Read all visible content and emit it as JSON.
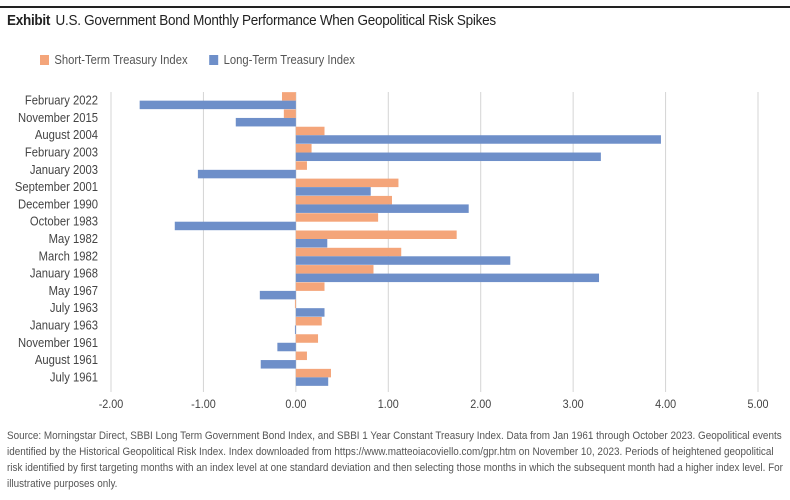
{
  "header": {
    "exhibit_label": "Exhibit",
    "title": "U.S. Government Bond Monthly Performance When Geopolitical Risk Spikes"
  },
  "footnote": "Source: Morningstar Direct, SBBI Long Term Government Bond Index, and SBBI 1 Year Constant Treasury Index. Data from Jan 1961 through October 2023. Geopolitical events identified by the Historical Geopolitical Risk Index. Index downloaded from https://www.matteoiacoviello.com/gpr.htm on November 10, 2023. Periods of heightened geopolitical risk identified by first targeting months with an index level at one standard deviation and then selecting those months in which the subsequent month had a higher index level. For illustrative purposes only.",
  "chart_data": {
    "type": "bar",
    "orientation": "horizontal",
    "title": "U.S. Government Bond Monthly Performance When Geopolitical Risk Spikes",
    "xlabel": "",
    "ylabel": "",
    "xlim": [
      -2,
      5
    ],
    "x_ticks": [
      -2,
      -1,
      0,
      1,
      2,
      3,
      4,
      5
    ],
    "x_tick_labels": [
      "-2.00",
      "-1.00",
      "0.00",
      "1.00",
      "2.00",
      "3.00",
      "4.00",
      "5.00"
    ],
    "grid": "vertical",
    "legend_position": "top-left",
    "categories": [
      "February 2022",
      "November 2015",
      "August 2004",
      "February 2003",
      "January 2003",
      "September 2001",
      "December 1990",
      "October 1983",
      "May 1982",
      "March 1982",
      "January 1968",
      "May 1967",
      "July 1963",
      "January 1963",
      "November 1961",
      "August 1961",
      "July 1961"
    ],
    "series": [
      {
        "name": "Short-Term Treasury Index",
        "color": "#F4A57A",
        "values": [
          -0.15,
          -0.13,
          0.31,
          0.17,
          0.12,
          1.11,
          1.04,
          0.89,
          1.74,
          1.14,
          0.84,
          0.31,
          -0.01,
          0.28,
          0.24,
          0.12,
          0.38
        ]
      },
      {
        "name": "Long-Term Treasury Index",
        "color": "#6E8FC9",
        "values": [
          -1.69,
          -0.65,
          3.95,
          3.3,
          -1.06,
          0.81,
          1.87,
          -1.31,
          0.34,
          2.32,
          3.28,
          -0.39,
          0.31,
          -0.01,
          -0.2,
          -0.38,
          0.35
        ]
      }
    ]
  }
}
